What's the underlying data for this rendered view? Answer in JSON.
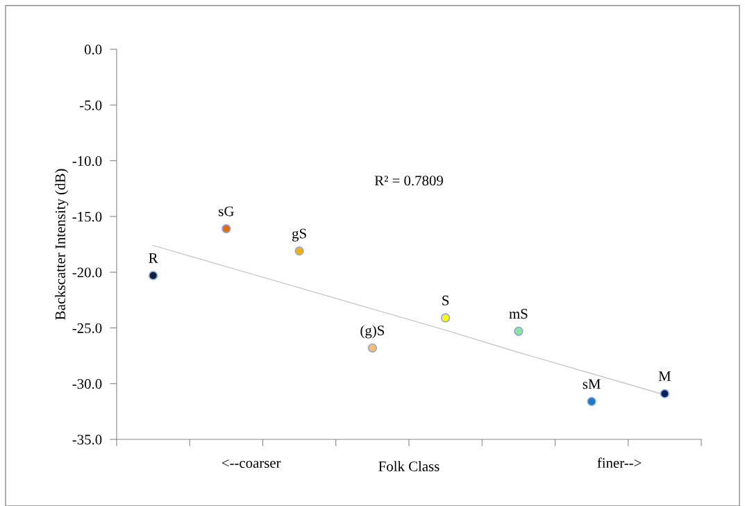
{
  "chart_data": {
    "type": "scatter",
    "ylabel": "Backscatter Intensity (dB)",
    "xlabel": "Folk Class",
    "categories": [
      null,
      null,
      null,
      null,
      null,
      null,
      null,
      null
    ],
    "ylim": [
      -35,
      0
    ],
    "yticks": [
      {
        "value": 0,
        "label": "0.0"
      },
      {
        "value": -5,
        "label": "-5.0"
      },
      {
        "value": -10,
        "label": "-10.0"
      },
      {
        "value": -15,
        "label": "-15.0"
      },
      {
        "value": -20,
        "label": "-20.0"
      },
      {
        "value": -25,
        "label": "-25.0"
      },
      {
        "value": -30,
        "label": "-30.0"
      },
      {
        "value": -35,
        "label": "-35.0"
      }
    ],
    "grid": false,
    "series": [
      {
        "marker": "circle",
        "values": [
          -20.3,
          -16.1,
          -18.1,
          -26.8,
          -24.1,
          -25.3,
          -31.6,
          -30.9
        ],
        "colors": [
          "#10213f",
          "#e36c0a",
          "#f5b400",
          "#f9bf6f",
          "#ffff00",
          "#8be5a0",
          "#1f77c8",
          "#0a1f5c"
        ]
      },
      {
        "type": "line",
        "marker": "none",
        "values": [
          -17.6,
          -19.5,
          -21.4,
          -23.3,
          -25.2,
          -27.2,
          -29.1,
          -31.0
        ],
        "color": "#c8c8c8"
      }
    ],
    "annotations": [
      {
        "text": "R",
        "y": -20.3
      },
      {
        "text": "sG",
        "y": -16.1
      },
      {
        "text": "gS",
        "y": -18.1
      },
      {
        "text": "(g)S",
        "y": -26.8
      },
      {
        "text": "S",
        "y": -24.1
      },
      {
        "text": "mS",
        "y": -25.3
      },
      {
        "text": "sM",
        "y": -31.6
      },
      {
        "text": "M",
        "y": -30.9
      },
      "R² = 0.7809",
      "<--coarser",
      "finer-->"
    ]
  }
}
